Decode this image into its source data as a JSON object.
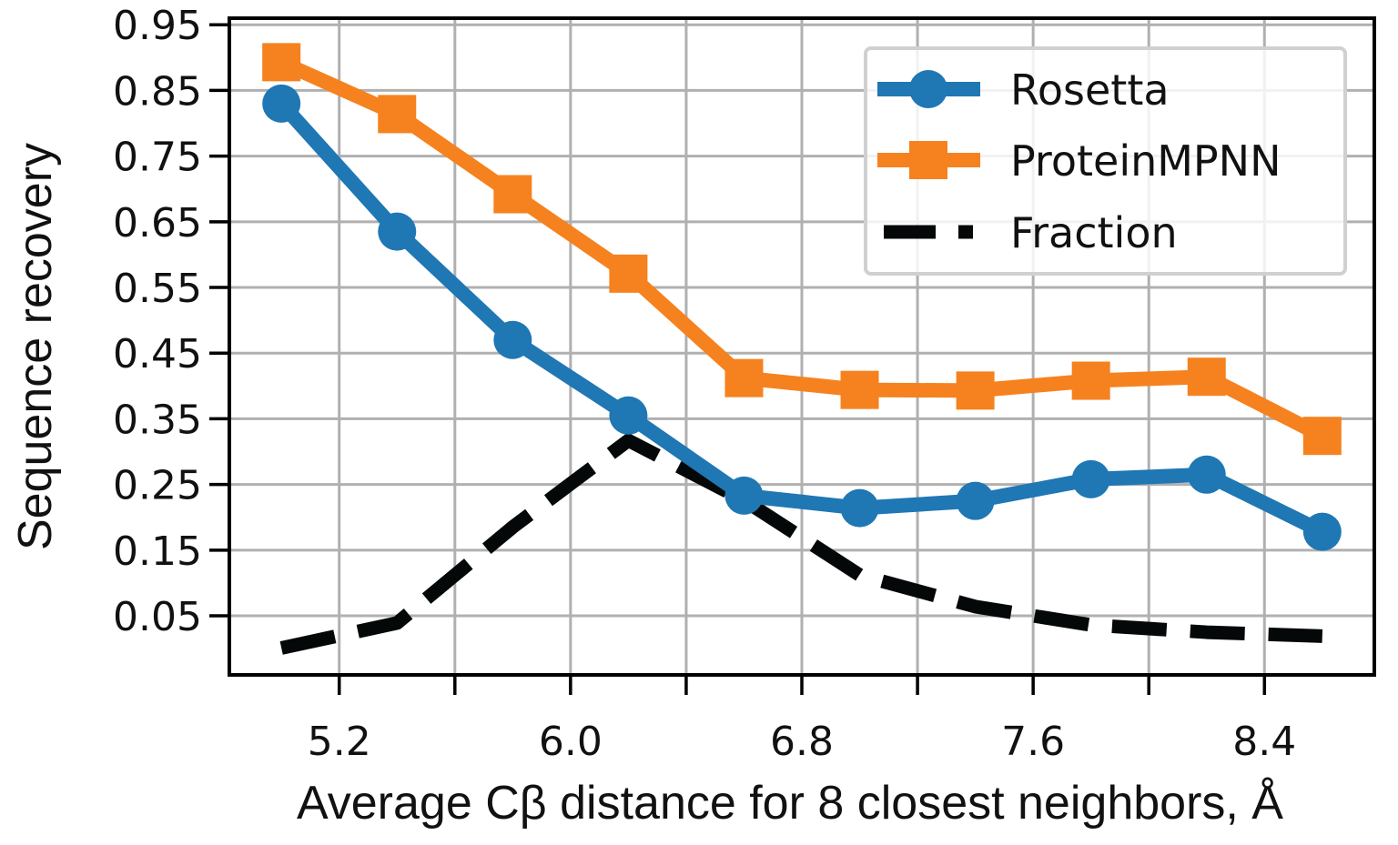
{
  "chart_data": {
    "type": "line",
    "title": "",
    "xlabel": "Average Cβ distance for 8 closest neighbors, Å",
    "ylabel": "Sequence recovery",
    "x": [
      5.0,
      5.4,
      5.8,
      6.2,
      6.6,
      7.0,
      7.4,
      7.8,
      8.2,
      8.6
    ],
    "xlim": [
      4.82,
      8.78
    ],
    "ylim": [
      -0.04,
      0.96
    ],
    "xticks": [
      5.2,
      6.0,
      6.8,
      7.6,
      8.4
    ],
    "xtick_labels": [
      "5.2",
      "6.0",
      "6.8",
      "7.6",
      "8.4"
    ],
    "xminor_ticks": [
      5.6,
      6.4,
      7.2,
      8.0
    ],
    "yticks": [
      0.95,
      0.85,
      0.75,
      0.65,
      0.55,
      0.45,
      0.35,
      0.25,
      0.15,
      0.05
    ],
    "ytick_labels": [
      "0.95",
      "0.85",
      "0.75",
      "0.65",
      "0.55",
      "0.45",
      "0.35",
      "0.25",
      "0.15",
      "0.05"
    ],
    "grid": true,
    "legend_position": "top-right",
    "series": [
      {
        "name": "Rosetta",
        "color": "#1f77b4",
        "marker": "circle",
        "linestyle": "solid",
        "values": [
          0.83,
          0.635,
          0.47,
          0.355,
          0.233,
          0.214,
          0.225,
          0.258,
          0.265,
          0.178
        ]
      },
      {
        "name": "ProteinMPNN",
        "color": "#f5821f",
        "marker": "square",
        "linestyle": "solid",
        "values": [
          0.893,
          0.814,
          0.692,
          0.571,
          0.412,
          0.394,
          0.393,
          0.408,
          0.414,
          0.324
        ]
      },
      {
        "name": "Fraction",
        "color": "#050808",
        "marker": "none",
        "linestyle": "dashed",
        "values": [
          0.001,
          0.039,
          0.185,
          0.317,
          0.226,
          0.112,
          0.064,
          0.036,
          0.025,
          0.019
        ]
      }
    ]
  }
}
